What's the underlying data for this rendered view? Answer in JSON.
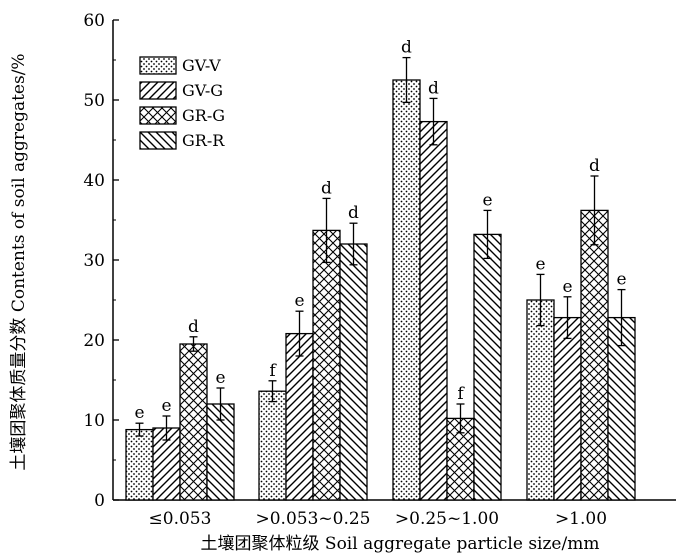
{
  "chart_data": {
    "type": "bar",
    "title": "",
    "xlabel": "土壤团聚体粒级 Soil aggregate particle size/mm",
    "ylabel": "土壤团聚体质量分数 Contents of soil aggregates/%",
    "ylim": [
      0,
      60
    ],
    "yticks": [
      "0",
      "10",
      "20",
      "30",
      "40",
      "50",
      "60"
    ],
    "categories": [
      "≤0.053",
      ">0.053~0.25",
      ">0.25~1.00",
      ">1.00"
    ],
    "legend_position": "top-left",
    "series": [
      {
        "name": "GV-V",
        "pattern": "dots",
        "values": [
          8.8,
          13.6,
          52.5,
          25.0
        ],
        "errors": [
          0.8,
          1.3,
          2.8,
          3.2
        ],
        "labels": [
          "e",
          "f",
          "d",
          "e"
        ]
      },
      {
        "name": "GV-G",
        "pattern": "forward-hatch",
        "values": [
          9.0,
          20.8,
          47.3,
          22.8
        ],
        "errors": [
          1.5,
          2.8,
          2.9,
          2.6
        ],
        "labels": [
          "e",
          "e",
          "d",
          "e"
        ]
      },
      {
        "name": "GR-G",
        "pattern": "crosshatch",
        "values": [
          19.5,
          33.7,
          10.2,
          36.2
        ],
        "errors": [
          0.9,
          4.0,
          1.8,
          4.3
        ],
        "labels": [
          "d",
          "d",
          "f",
          "d"
        ]
      },
      {
        "name": "GR-R",
        "pattern": "back-hatch",
        "values": [
          12.0,
          32.0,
          33.2,
          22.8
        ],
        "errors": [
          2.0,
          2.6,
          3.0,
          3.5
        ],
        "labels": [
          "e",
          "d",
          "e",
          "e"
        ]
      }
    ]
  }
}
